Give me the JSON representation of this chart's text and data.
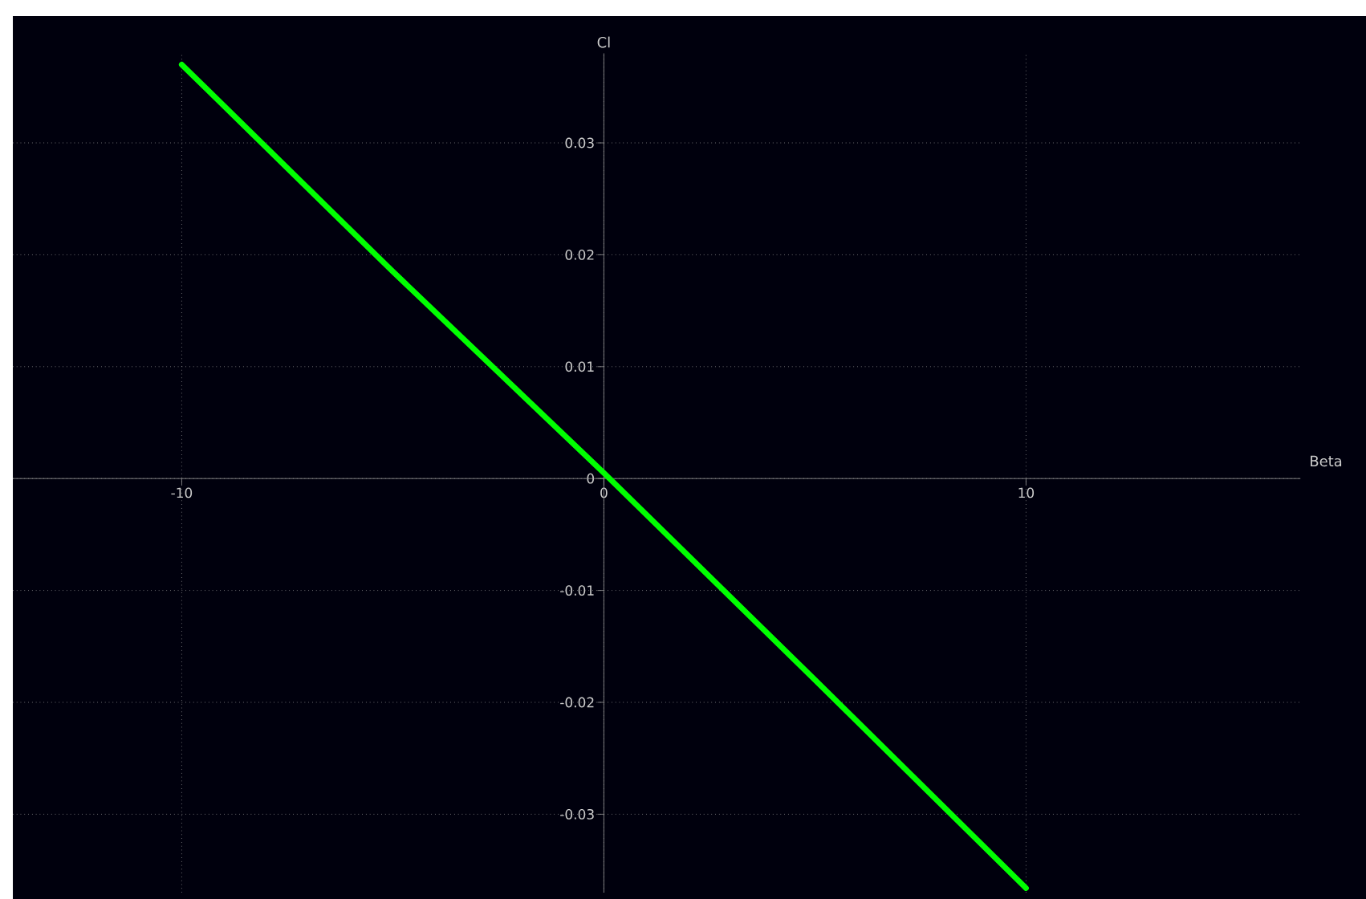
{
  "chart_data": {
    "type": "line",
    "xlabel": "Beta",
    "ylabel": "Cl",
    "x": [
      -10,
      -5,
      0,
      5,
      10
    ],
    "series": [
      {
        "color": "#00ff00",
        "values": [
          0.037,
          0.0185,
          0.0005,
          -0.018,
          -0.0366
        ]
      }
    ],
    "xlim": [
      -14,
      16.5
    ],
    "ylim": [
      -0.037,
      0.038
    ],
    "xticks": [
      -10,
      0,
      10
    ],
    "yticks": [
      -0.03,
      -0.02,
      -0.01,
      0,
      0.01,
      0.02,
      0.03
    ],
    "grid": true,
    "marker": "none",
    "line_style": "solid"
  }
}
